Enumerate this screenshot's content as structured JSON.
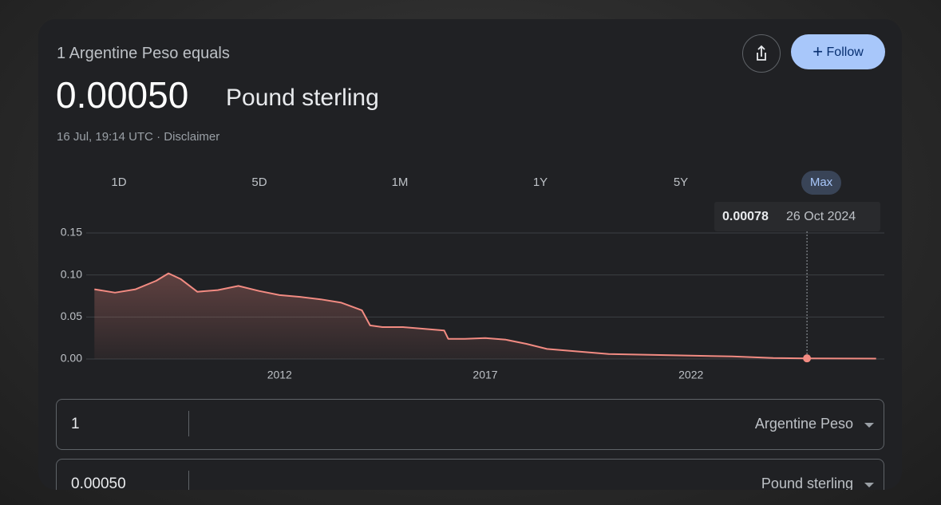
{
  "header": {
    "subtitle": "1 Argentine Peso equals",
    "value": "0.00050",
    "currency": "Pound sterling",
    "timestamp": "16 Jul, 19:14 UTC",
    "disclaimer": "Disclaimer"
  },
  "buttons": {
    "follow": "Follow"
  },
  "ranges": [
    "1D",
    "5D",
    "1M",
    "1Y",
    "5Y",
    "Max"
  ],
  "selected_range": "Max",
  "chart_data": {
    "type": "line",
    "color": "#f28b82",
    "x": [
      2007.5,
      2008.0,
      2008.5,
      2009.0,
      2009.3,
      2009.6,
      2010.0,
      2010.5,
      2011.0,
      2011.5,
      2012.0,
      2012.5,
      2013.0,
      2013.5,
      2014.0,
      2014.2,
      2014.5,
      2015.0,
      2015.5,
      2016.0,
      2016.1,
      2016.5,
      2017.0,
      2017.5,
      2018.0,
      2018.5,
      2019.0,
      2019.5,
      2020.0,
      2021.0,
      2022.0,
      2023.0,
      2024.0,
      2024.82,
      2026.5
    ],
    "values": [
      0.083,
      0.079,
      0.083,
      0.093,
      0.102,
      0.095,
      0.08,
      0.082,
      0.087,
      0.081,
      0.076,
      0.074,
      0.071,
      0.067,
      0.058,
      0.04,
      0.038,
      0.038,
      0.036,
      0.034,
      0.024,
      0.024,
      0.025,
      0.023,
      0.018,
      0.012,
      0.01,
      0.008,
      0.006,
      0.005,
      0.004,
      0.003,
      0.0012,
      0.00078,
      0.0005
    ],
    "xlim": [
      2007.3,
      2026.7
    ],
    "xticks": [
      2012,
      2017,
      2022
    ],
    "ylim": [
      0,
      0.15
    ],
    "yticks": [
      {
        "value": 0,
        "label": "0.00"
      },
      0.05,
      {
        "value": 0.1,
        "label": "0.10"
      },
      0.15
    ],
    "grid": true,
    "highlight": {
      "x": 2024.82,
      "value": 0.00078,
      "date": "26 Oct 2024"
    }
  },
  "converter": {
    "from_amount": "1",
    "from_currency": "Argentine Peso",
    "to_amount": "0.00050",
    "to_currency": "Pound sterling"
  }
}
